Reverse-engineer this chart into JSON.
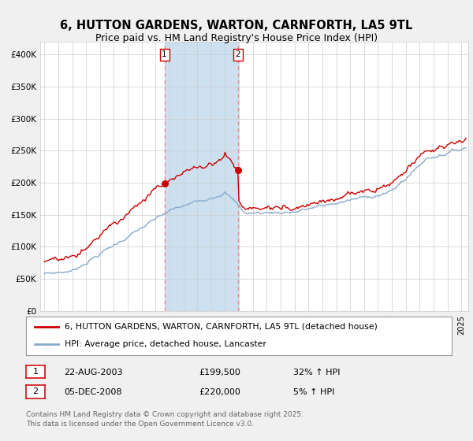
{
  "title": "6, HUTTON GARDENS, WARTON, CARNFORTH, LA5 9TL",
  "subtitle": "Price paid vs. HM Land Registry's House Price Index (HPI)",
  "title_fontsize": 10.5,
  "subtitle_fontsize": 9,
  "sale1_date": "22-AUG-2003",
  "sale1_price": 199500,
  "sale1_hpi_pct": "32% ↑ HPI",
  "sale2_date": "05-DEC-2008",
  "sale2_price": 220000,
  "sale2_hpi_pct": "5% ↑ HPI",
  "legend_label1": "6, HUTTON GARDENS, WARTON, CARNFORTH, LA5 9TL (detached house)",
  "legend_label2": "HPI: Average price, detached house, Lancaster",
  "footer": "Contains HM Land Registry data © Crown copyright and database right 2025.\nThis data is licensed under the Open Government Licence v3.0.",
  "line_color_red": "#cc0000",
  "line_color_blue": "#88aacc",
  "dot_color": "#cc0000",
  "shade_color": "#cce0f0",
  "dashed_line_color": "#ee8888",
  "grid_color": "#cccccc",
  "bg_color": "#f0f0f0",
  "plot_bg": "#ffffff",
  "ylim": [
    0,
    420000
  ],
  "yticks": [
    0,
    50000,
    100000,
    150000,
    200000,
    250000,
    300000,
    350000,
    400000
  ],
  "xlim_start": 1994.7,
  "xlim_end": 2025.5,
  "sale1_x": 2003.64,
  "sale2_x": 2008.92,
  "sale1_hpi_value": 151136,
  "sale2_hpi_value": 209524
}
